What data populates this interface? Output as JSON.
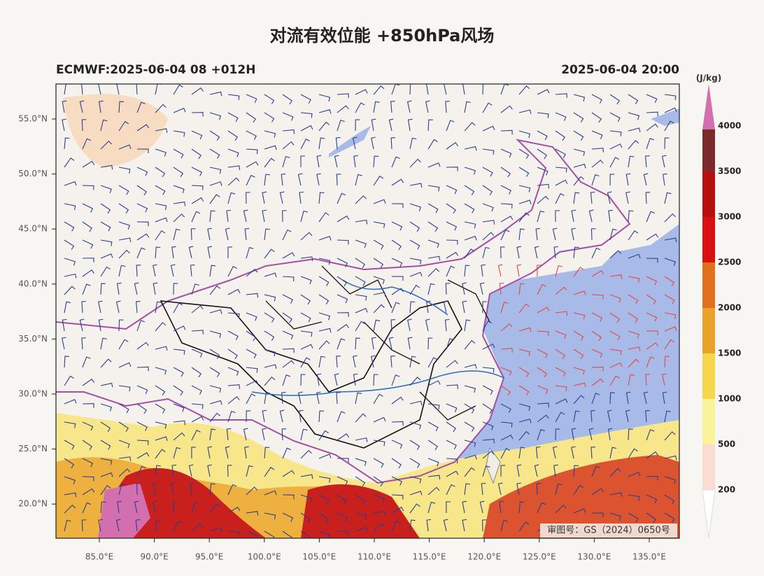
{
  "title": "对流有效位能 +850hPa风场",
  "header": {
    "left": "ECMWF:2025-06-04 08 +012H",
    "right": "2025-06-04 20:00"
  },
  "x_axis": {
    "ticks": [
      "85.0°E",
      "90.0°E",
      "95.0°E",
      "100.0°E",
      "105.0°E",
      "110.0°E",
      "115.0°E",
      "120.0°E",
      "125.0°E",
      "130.0°E",
      "135.0°E"
    ]
  },
  "y_axis": {
    "ticks": [
      "55.0°N",
      "50.0°N",
      "45.0°N",
      "40.0°N",
      "35.0°N",
      "30.0°N",
      "25.0°N",
      "20.0°N"
    ]
  },
  "colorbar": {
    "unit": "(J/kg)",
    "levels": [
      200,
      500,
      1000,
      1500,
      2000,
      2500,
      3000,
      3500,
      4000
    ]
  },
  "map_note": "审图号：GS（2024）0650号"
}
